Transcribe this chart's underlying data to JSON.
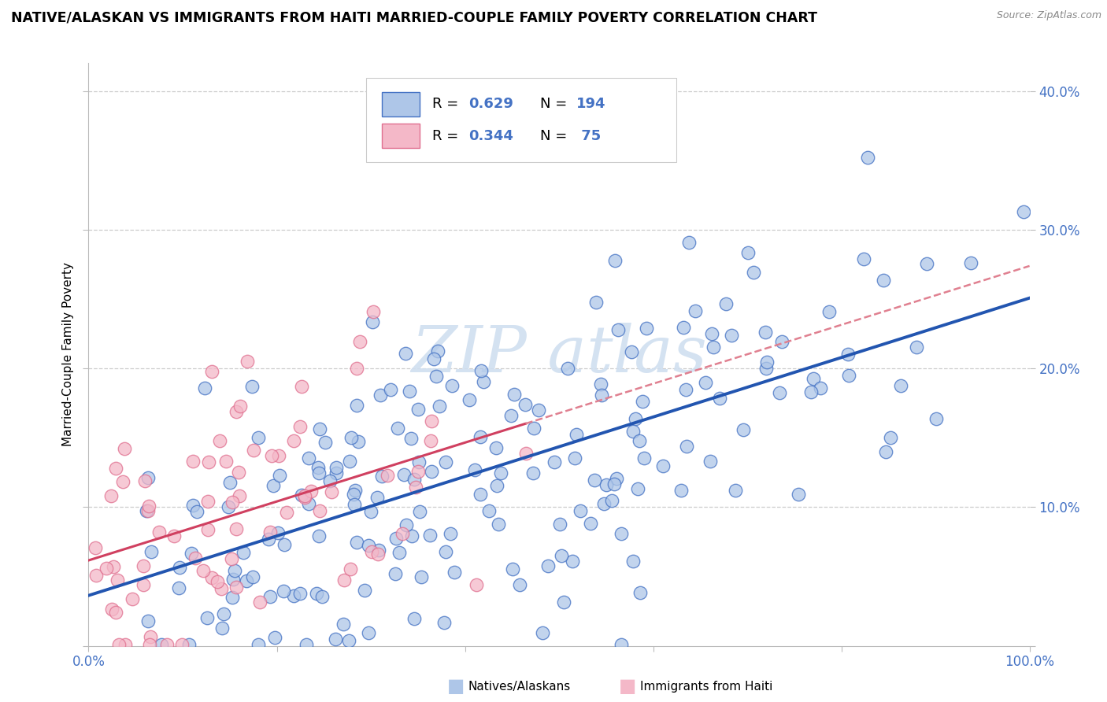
{
  "title": "NATIVE/ALASKAN VS IMMIGRANTS FROM HAITI MARRIED-COUPLE FAMILY POVERTY CORRELATION CHART",
  "source": "Source: ZipAtlas.com",
  "ylabel": "Married-Couple Family Poverty",
  "xlim": [
    0,
    1.0
  ],
  "ylim": [
    0,
    0.42
  ],
  "native_color": "#aec6e8",
  "native_edge_color": "#4472c4",
  "haiti_color": "#f4b8c8",
  "haiti_edge_color": "#e07090",
  "native_line_color": "#2255b0",
  "haiti_line_color": "#d04060",
  "haiti_dash_color": "#e08090",
  "watermark_color": "#d0dff0",
  "background_color": "#ffffff",
  "grid_color": "#cccccc",
  "tick_label_color": "#4472c4",
  "legend_r1": "0.629",
  "legend_n1": "194",
  "legend_r2": "0.344",
  "legend_n2": "75",
  "native_seed": 42,
  "haiti_seed": 123
}
